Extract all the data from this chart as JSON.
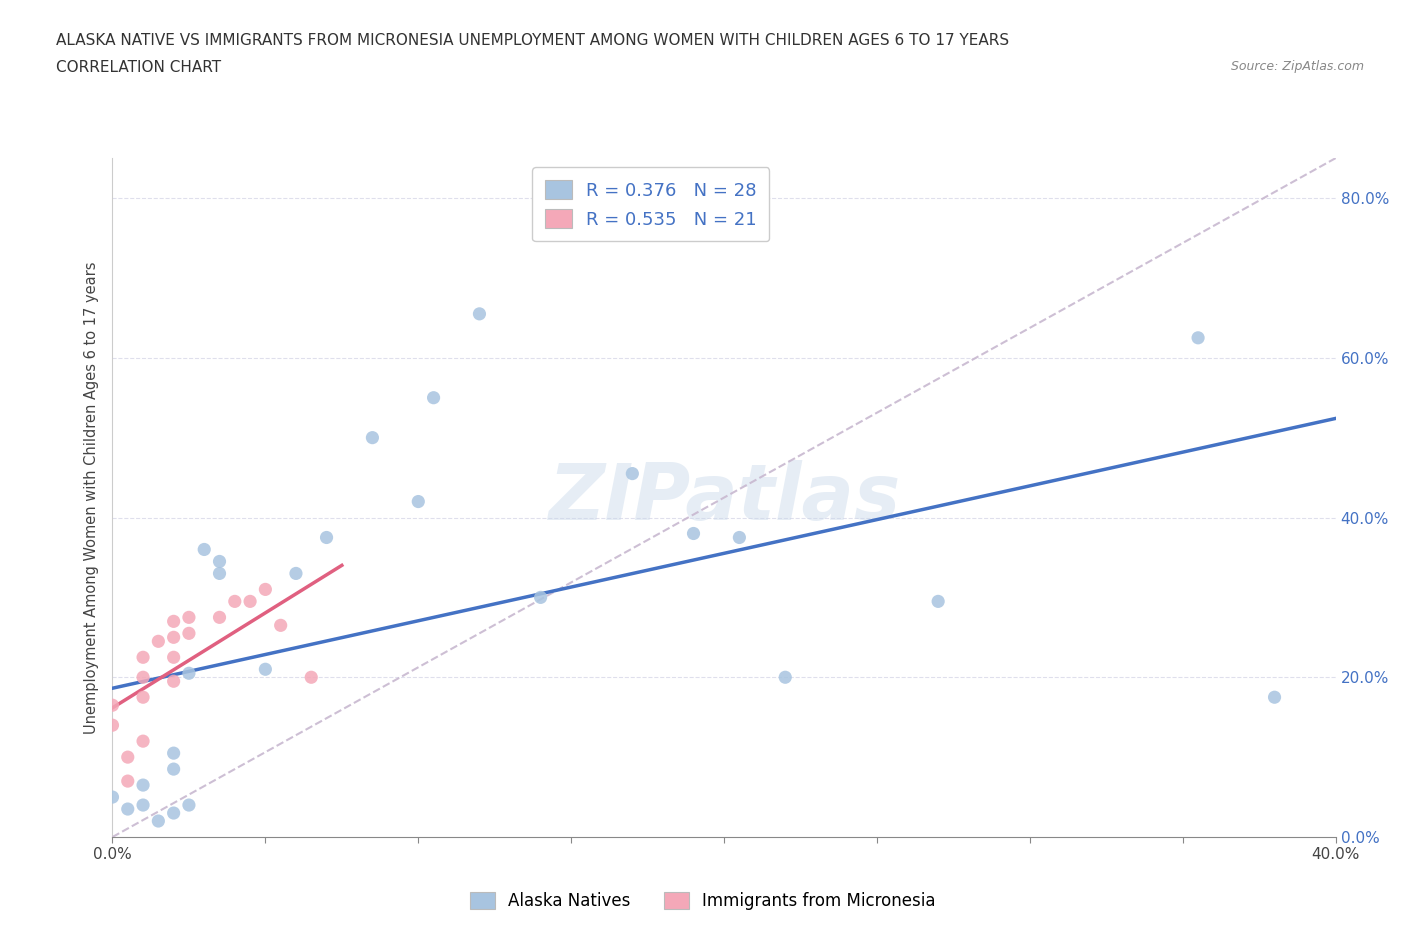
{
  "title_line1": "ALASKA NATIVE VS IMMIGRANTS FROM MICRONESIA UNEMPLOYMENT AMONG WOMEN WITH CHILDREN AGES 6 TO 17 YEARS",
  "title_line2": "CORRELATION CHART",
  "source": "Source: ZipAtlas.com",
  "ylabel": "Unemployment Among Women with Children Ages 6 to 17 years",
  "watermark": "ZIPatlas",
  "xlim": [
    0.0,
    0.4
  ],
  "ylim": [
    0.0,
    0.85
  ],
  "xtick_vals": [
    0.0,
    0.05,
    0.1,
    0.15,
    0.2,
    0.25,
    0.3,
    0.35,
    0.4
  ],
  "xtick_label_vals": [
    0.0,
    0.4
  ],
  "ytick_vals": [
    0.0,
    0.2,
    0.4,
    0.6,
    0.8
  ],
  "ytick_labels": [
    "0.0%",
    "20.0%",
    "40.0%",
    "60.0%",
    "80.0%"
  ],
  "alaska_native_color": "#a8c4e0",
  "micronesia_color": "#f4a8b8",
  "alaska_native_R": 0.376,
  "alaska_native_N": 28,
  "micronesia_R": 0.535,
  "micronesia_N": 21,
  "alaska_native_points": [
    [
      0.0,
      0.05
    ],
    [
      0.005,
      0.035
    ],
    [
      0.01,
      0.04
    ],
    [
      0.01,
      0.065
    ],
    [
      0.015,
      0.02
    ],
    [
      0.02,
      0.03
    ],
    [
      0.02,
      0.085
    ],
    [
      0.02,
      0.105
    ],
    [
      0.025,
      0.04
    ],
    [
      0.025,
      0.205
    ],
    [
      0.03,
      0.36
    ],
    [
      0.035,
      0.33
    ],
    [
      0.035,
      0.345
    ],
    [
      0.05,
      0.21
    ],
    [
      0.06,
      0.33
    ],
    [
      0.07,
      0.375
    ],
    [
      0.085,
      0.5
    ],
    [
      0.1,
      0.42
    ],
    [
      0.105,
      0.55
    ],
    [
      0.12,
      0.655
    ],
    [
      0.14,
      0.3
    ],
    [
      0.17,
      0.455
    ],
    [
      0.19,
      0.38
    ],
    [
      0.205,
      0.375
    ],
    [
      0.22,
      0.2
    ],
    [
      0.27,
      0.295
    ],
    [
      0.355,
      0.625
    ],
    [
      0.38,
      0.175
    ]
  ],
  "micronesia_points": [
    [
      0.0,
      0.14
    ],
    [
      0.0,
      0.165
    ],
    [
      0.005,
      0.07
    ],
    [
      0.005,
      0.1
    ],
    [
      0.01,
      0.12
    ],
    [
      0.01,
      0.175
    ],
    [
      0.01,
      0.2
    ],
    [
      0.01,
      0.225
    ],
    [
      0.015,
      0.245
    ],
    [
      0.02,
      0.195
    ],
    [
      0.02,
      0.225
    ],
    [
      0.02,
      0.25
    ],
    [
      0.02,
      0.27
    ],
    [
      0.025,
      0.255
    ],
    [
      0.025,
      0.275
    ],
    [
      0.035,
      0.275
    ],
    [
      0.04,
      0.295
    ],
    [
      0.045,
      0.295
    ],
    [
      0.05,
      0.31
    ],
    [
      0.055,
      0.265
    ],
    [
      0.065,
      0.2
    ]
  ],
  "alaska_line_color": "#4472c4",
  "micronesia_line_color": "#e06080",
  "trendline_dashed_color": "#c8b8d0",
  "grid_color": "#d8d8e8",
  "blue_text_color": "#4472c4",
  "legend_text_color": "#4472c4"
}
